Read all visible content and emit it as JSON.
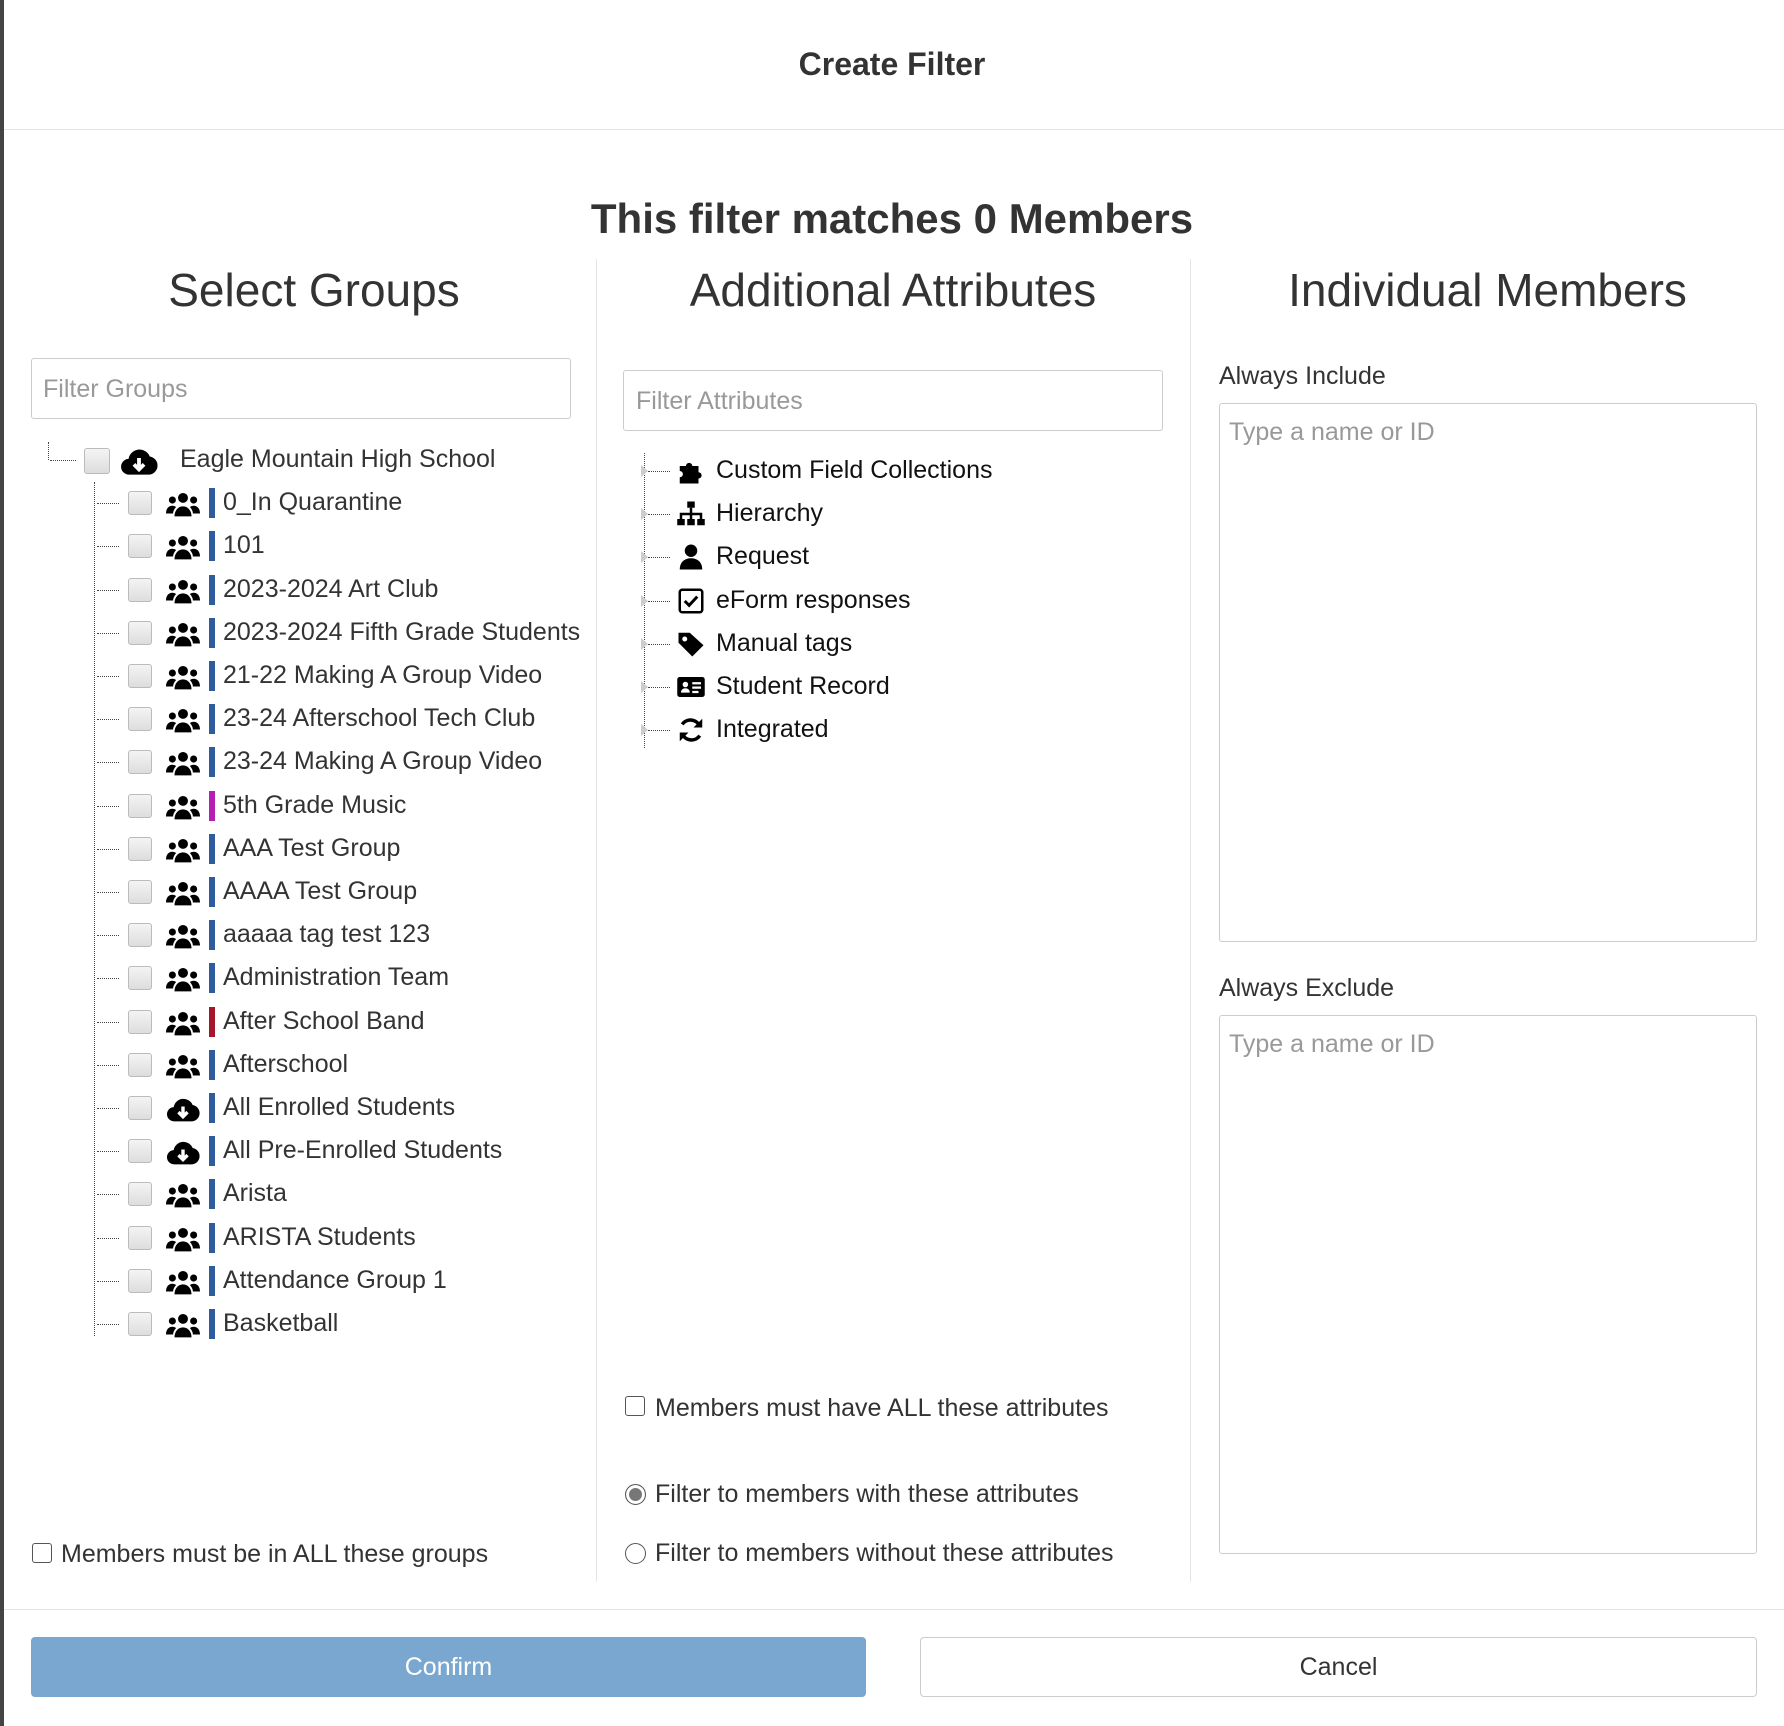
{
  "header": {
    "title": "Create Filter"
  },
  "summary": "This filter matches 0 Members",
  "groups": {
    "title": "Select Groups",
    "filter_placeholder": "Filter Groups",
    "root": {
      "label": "Eagle Mountain High School",
      "icon": "cloud"
    },
    "items": [
      {
        "label": "0_In Quarantine",
        "icon": "users",
        "color": "#2f5c9c"
      },
      {
        "label": "101",
        "icon": "users",
        "color": "#2f5c9c"
      },
      {
        "label": "2023-2024 Art Club",
        "icon": "users",
        "color": "#2f5c9c"
      },
      {
        "label": "2023-2024 Fifth Grade Students",
        "icon": "users",
        "color": "#2f5c9c"
      },
      {
        "label": "21-22 Making A Group Video",
        "icon": "users",
        "color": "#2f5c9c"
      },
      {
        "label": "23-24 Afterschool Tech Club",
        "icon": "users",
        "color": "#2f5c9c"
      },
      {
        "label": "23-24 Making A Group Video",
        "icon": "users",
        "color": "#2f5c9c"
      },
      {
        "label": "5th Grade Music",
        "icon": "users",
        "color": "#b61fb6"
      },
      {
        "label": "AAA Test Group",
        "icon": "users",
        "color": "#2f5c9c"
      },
      {
        "label": "AAAA Test Group",
        "icon": "users",
        "color": "#2f5c9c"
      },
      {
        "label": "aaaaa tag test 123",
        "icon": "users",
        "color": "#2f5c9c"
      },
      {
        "label": "Administration Team",
        "icon": "users",
        "color": "#2f5c9c"
      },
      {
        "label": "After School Band",
        "icon": "users",
        "color": "#a3162c"
      },
      {
        "label": "Afterschool",
        "icon": "users",
        "color": "#2f5c9c"
      },
      {
        "label": "All Enrolled Students",
        "icon": "cloud",
        "color": "#2f5c9c"
      },
      {
        "label": "All Pre-Enrolled Students",
        "icon": "cloud",
        "color": "#2f5c9c"
      },
      {
        "label": "Arista",
        "icon": "users",
        "color": "#2f5c9c"
      },
      {
        "label": "ARISTA Students",
        "icon": "users",
        "color": "#2f5c9c"
      },
      {
        "label": "Attendance Group 1",
        "icon": "users",
        "color": "#2f5c9c"
      },
      {
        "label": "Basketball",
        "icon": "users",
        "color": "#2f5c9c"
      }
    ],
    "all_toggle": "Members must be in ALL these groups"
  },
  "attributes": {
    "title": "Additional Attributes",
    "filter_placeholder": "Filter Attributes",
    "items": [
      {
        "label": "Custom Field Collections",
        "icon": "puzzle"
      },
      {
        "label": "Hierarchy",
        "icon": "sitemap"
      },
      {
        "label": "Request",
        "icon": "user"
      },
      {
        "label": "eForm responses",
        "icon": "check"
      },
      {
        "label": "Manual tags",
        "icon": "tag"
      },
      {
        "label": "Student Record",
        "icon": "idcard"
      },
      {
        "label": "Integrated",
        "icon": "sync"
      }
    ],
    "all_toggle": "Members must have ALL these attributes",
    "modes": [
      "Filter to members with these attributes",
      "Filter to members without these attributes"
    ],
    "selected_mode": 0
  },
  "members": {
    "title": "Individual Members",
    "include_label": "Always Include",
    "include_placeholder": "Type a name or ID",
    "exclude_label": "Always Exclude",
    "exclude_placeholder": "Type a name or ID"
  },
  "footer": {
    "confirm": "Confirm",
    "cancel": "Cancel"
  }
}
